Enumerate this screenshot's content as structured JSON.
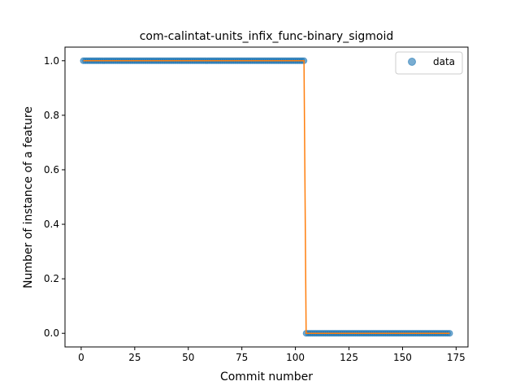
{
  "chart_data": {
    "type": "scatter",
    "title": "com-calintat-units_infix_func-binary_sigmoid",
    "xlabel": "Commit number",
    "ylabel": "Number of instance of a feature",
    "xlim": [
      -7.55,
      180.55
    ],
    "ylim": [
      -0.05,
      1.05
    ],
    "xticks": [
      0,
      25,
      50,
      75,
      100,
      125,
      150,
      175
    ],
    "yticks": [
      0.0,
      0.2,
      0.4,
      0.6,
      0.8,
      1.0
    ],
    "xtick_labels": [
      "0",
      "25",
      "50",
      "75",
      "100",
      "125",
      "150",
      "175"
    ],
    "ytick_labels": [
      "0.0",
      "0.2",
      "0.4",
      "0.6",
      "0.8",
      "1.0"
    ],
    "grid": false,
    "legend_position": "top-right",
    "series": [
      {
        "name": "data",
        "kind": "points",
        "color": "#1f77b4",
        "segments": [
          {
            "x_start": 1,
            "x_end": 104,
            "y": 1.0
          },
          {
            "x_start": 105,
            "x_end": 172,
            "y": 0.0
          }
        ]
      },
      {
        "kind": "line",
        "color": "#ff7f0e",
        "x": [
          1,
          104,
          105,
          172
        ],
        "y": [
          1.0,
          1.0,
          0.0,
          0.0
        ]
      }
    ]
  }
}
